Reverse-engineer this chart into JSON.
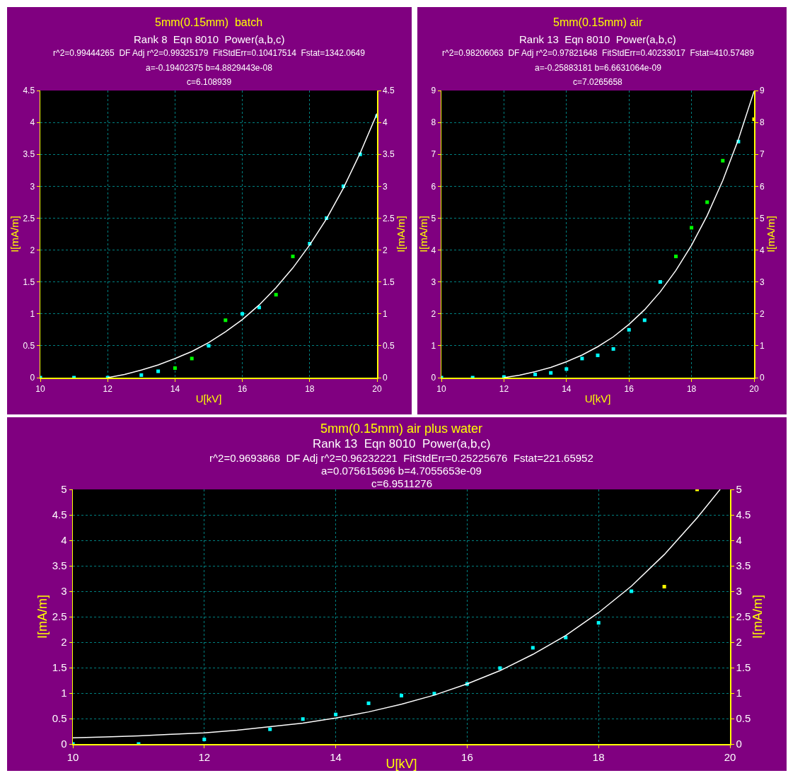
{
  "chart_data": [
    {
      "type": "scatter",
      "title": "5mm(0.15mm)  batch",
      "subtitle": "Rank 8  Eqn 8010  Power(a,b,c)",
      "annotations": [
        "r^2=0.99444265  DF Adj r^2=0.99325179  FitStdErr=0.10417514  Fstat=1342.0649",
        "a=-0.19402375 b=4.8829443e-08",
        "c=6.108939"
      ],
      "xlabel": "U[kV]",
      "ylabel": "I[mA/m]",
      "y2label": "I[mA/m]",
      "xlim": [
        10,
        20
      ],
      "xticks": [
        10,
        12,
        14,
        16,
        18,
        20
      ],
      "ylim": [
        0,
        4.5
      ],
      "yticks": [
        0,
        0.5,
        1,
        1.5,
        2,
        2.5,
        3,
        3.5,
        4,
        4.5
      ],
      "y2lim": [
        0,
        4.5
      ],
      "y2ticks": [
        0,
        0.5,
        1,
        1.5,
        2,
        2.5,
        3,
        3.5,
        4,
        4.5
      ],
      "grid": true,
      "series": [
        {
          "color": "#00ffff",
          "marker": "square",
          "x": [
            10,
            11,
            12,
            13,
            13.5,
            15,
            16,
            16.5,
            18,
            18.5,
            19,
            19.5,
            20
          ],
          "values": [
            0,
            0,
            0,
            0.04,
            0.1,
            0.5,
            1.0,
            1.1,
            2.1,
            2.5,
            3.0,
            3.5,
            4.1
          ]
        },
        {
          "color": "#00ff00",
          "marker": "square",
          "x": [
            14,
            14.5,
            15.5,
            17,
            17.5
          ],
          "values": [
            0.15,
            0.3,
            0.9,
            1.3,
            1.9
          ]
        },
        {
          "type": "line",
          "axis": "y2",
          "color": "#ffffff",
          "marker": "none",
          "x": [
            12,
            12.5,
            13,
            13.5,
            14,
            14.5,
            15,
            15.5,
            16,
            16.5,
            17,
            17.5,
            18,
            18.5,
            19,
            19.5,
            20
          ],
          "values": [
            0,
            0.05,
            0.12,
            0.2,
            0.3,
            0.41,
            0.55,
            0.72,
            0.91,
            1.14,
            1.41,
            1.72,
            2.08,
            2.49,
            2.97,
            3.52,
            4.14
          ]
        }
      ]
    },
    {
      "type": "scatter",
      "title": "5mm(0.15mm) air",
      "subtitle": "Rank 13  Eqn 8010  Power(a,b,c)",
      "annotations": [
        "r^2=0.98206063  DF Adj r^2=0.97821648  FitStdErr=0.40233017  Fstat=410.57489",
        "a=-0.25883181 b=6.6631064e-09",
        "c=7.0265658"
      ],
      "xlabel": "U[kV]",
      "ylabel": "I[mA/m]",
      "y2label": "I[mA/m]",
      "xlim": [
        10,
        20
      ],
      "xticks": [
        10,
        12,
        14,
        16,
        18,
        20
      ],
      "ylim": [
        0,
        9
      ],
      "yticks": [
        0,
        1,
        2,
        3,
        4,
        5,
        6,
        7,
        8,
        9
      ],
      "y2lim": [
        0,
        9
      ],
      "y2ticks": [
        0,
        1,
        2,
        3,
        4,
        5,
        6,
        7,
        8,
        9
      ],
      "grid": true,
      "series": [
        {
          "color": "#00ffff",
          "marker": "square",
          "x": [
            10,
            11,
            12,
            13,
            13.5,
            14,
            14.5,
            15,
            15.5,
            16,
            16.5,
            17,
            19.5
          ],
          "values": [
            0,
            0,
            0.02,
            0.1,
            0.15,
            0.27,
            0.6,
            0.7,
            0.9,
            1.5,
            1.8,
            3.0,
            7.4
          ]
        },
        {
          "color": "#00ff00",
          "marker": "square",
          "x": [
            17.5,
            18,
            18.5,
            19
          ],
          "values": [
            3.8,
            4.7,
            5.5,
            6.8
          ]
        },
        {
          "color": "#ffff00",
          "marker": "square",
          "x": [
            20
          ],
          "values": [
            8.1
          ]
        },
        {
          "type": "line",
          "axis": "y2",
          "color": "#ffffff",
          "marker": "none",
          "x": [
            12,
            12.5,
            13,
            13.5,
            14,
            14.5,
            15,
            15.5,
            16,
            16.5,
            17,
            17.5,
            18,
            18.5,
            19,
            19.5,
            20
          ],
          "values": [
            0,
            0.08,
            0.19,
            0.32,
            0.5,
            0.71,
            0.97,
            1.28,
            1.67,
            2.13,
            2.69,
            3.36,
            4.15,
            5.08,
            6.18,
            7.47,
            8.98
          ]
        }
      ]
    },
    {
      "type": "scatter",
      "title": "5mm(0.15mm) air plus water",
      "subtitle": "Rank 13  Eqn 8010  Power(a,b,c)",
      "annotations": [
        "r^2=0.9693868  DF Adj r^2=0.96232221  FitStdErr=0.25225676  Fstat=221.65952",
        "a=0.075615696 b=4.7055653e-09",
        "c=6.9511276"
      ],
      "xlabel": "U[kV]",
      "ylabel": "I[mA/m]",
      "y2label": "I[mA/m]",
      "xlim": [
        10,
        20
      ],
      "xticks": [
        10,
        12,
        14,
        16,
        18,
        20
      ],
      "ylim": [
        0,
        5
      ],
      "yticks": [
        0,
        0.5,
        1,
        1.5,
        2,
        2.5,
        3,
        3.5,
        4,
        4.5,
        5
      ],
      "y2lim": [
        0,
        5
      ],
      "y2ticks": [
        0,
        0.5,
        1,
        1.5,
        2,
        2.5,
        3,
        3.5,
        4,
        4.5,
        5
      ],
      "grid": true,
      "series": [
        {
          "color": "#00ffff",
          "marker": "square",
          "x": [
            10,
            11,
            12,
            13,
            13.5,
            14,
            14.5,
            15,
            15.5,
            16,
            16.5,
            17,
            17.5,
            18,
            18.5
          ],
          "values": [
            0,
            0,
            0.09,
            0.29,
            0.49,
            0.58,
            0.8,
            0.95,
            0.99,
            1.18,
            1.49,
            1.89,
            2.09,
            2.38,
            3.0
          ]
        },
        {
          "color": "#ffff00",
          "marker": "square",
          "x": [
            19,
            19.5
          ],
          "values": [
            3.09,
            5.0
          ]
        },
        {
          "type": "line",
          "axis": "y2",
          "color": "#ffffff",
          "marker": "none",
          "x": [
            10,
            10.5,
            11,
            11.5,
            12,
            12.5,
            13,
            13.5,
            14,
            14.5,
            15,
            15.5,
            16,
            16.5,
            17,
            17.5,
            18,
            18.5,
            19,
            19.5,
            19.85
          ],
          "values": [
            0.12,
            0.14,
            0.16,
            0.19,
            0.22,
            0.27,
            0.34,
            0.41,
            0.51,
            0.63,
            0.78,
            0.96,
            1.18,
            1.44,
            1.76,
            2.13,
            2.58,
            3.1,
            3.72,
            4.44,
            5.0
          ]
        }
      ]
    }
  ]
}
